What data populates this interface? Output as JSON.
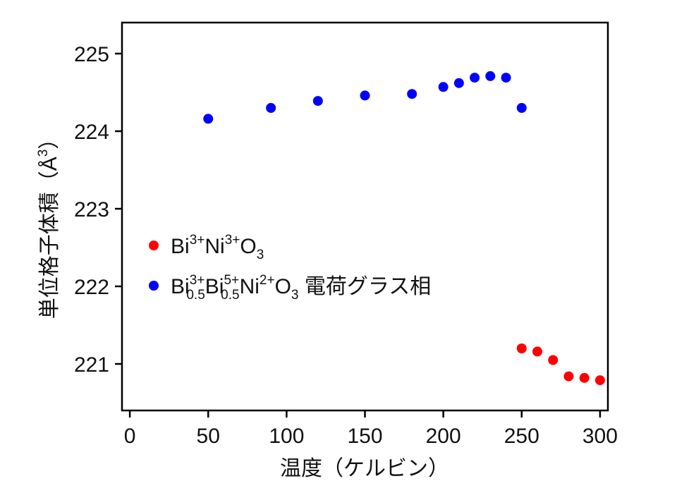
{
  "chart_data": {
    "type": "scatter",
    "xlabel": "温度（ケルビン）",
    "ylabel": "単位格子体積（Å³）",
    "xlim": [
      -5,
      305
    ],
    "ylim": [
      220.4,
      225.4
    ],
    "xticks": [
      "0",
      "50",
      "100",
      "150",
      "200",
      "250",
      "300"
    ],
    "yticks": [
      "221",
      "222",
      "223",
      "224",
      "225"
    ],
    "legend_position": "center-left",
    "grid": false,
    "series": [
      {
        "name": "Bi³⁺Ni³⁺O₃",
        "color": "#ff0000",
        "x": [
          250,
          260,
          270,
          280,
          290,
          300
        ],
        "y": [
          221.2,
          221.16,
          221.05,
          220.84,
          220.82,
          220.79
        ]
      },
      {
        "name": "Bi³⁺₀.₅Bi⁵⁺₀.₅Ni²⁺O₃ 電荷グラス相",
        "color": "#0000ff",
        "x": [
          50,
          90,
          120,
          150,
          180,
          200,
          210,
          220,
          230,
          240,
          250
        ],
        "y": [
          224.16,
          224.3,
          224.39,
          224.46,
          224.48,
          224.57,
          224.62,
          224.69,
          224.71,
          224.69,
          224.3
        ]
      }
    ],
    "legend": {
      "red": {
        "b1": "Bi",
        "s1": "3+",
        "b2": "Ni",
        "s2": "3+",
        "b3": "O",
        "d3": "3"
      },
      "blue": {
        "b1": "Bi",
        "s1": "3+",
        "d1": "0.5",
        "b2": "Bi",
        "s2": "5+",
        "d2": "0.5",
        "b3": "Ni",
        "s3": "2+",
        "b4": "O",
        "d4": "3",
        "suffix": " 電荷グラス相"
      }
    },
    "ylabel_parts": {
      "main": "単位格子体積（Å",
      "sup": "3",
      "close": "）"
    }
  }
}
